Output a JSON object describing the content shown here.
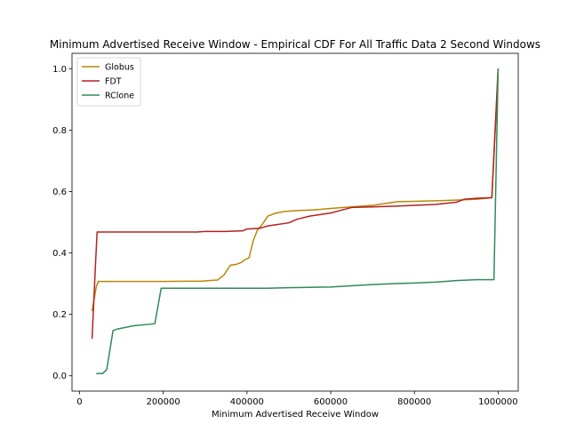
{
  "chart_data": {
    "type": "line",
    "title": "Minimum Advertised Receive Window - Empirical CDF For All Traffic Data 2 Second Windows",
    "xlabel": "Minimum Advertised Receive Window",
    "ylabel": "",
    "xlim": [
      -18000,
      1048000
    ],
    "ylim": [
      -0.05,
      1.05
    ],
    "xticks": [
      0,
      200000,
      400000,
      600000,
      800000,
      1000000
    ],
    "xtick_labels": [
      "0",
      "200000",
      "400000",
      "600000",
      "800000",
      "1000000"
    ],
    "yticks": [
      0.0,
      0.2,
      0.4,
      0.6,
      0.8,
      1.0
    ],
    "ytick_labels": [
      "0.0",
      "0.2",
      "0.4",
      "0.6",
      "0.8",
      "1.0"
    ],
    "grid": false,
    "legend_position": "top-left",
    "series": [
      {
        "name": "Globus",
        "color": "#b8860b",
        "x": [
          30000,
          40000,
          45000,
          60000,
          100000,
          200000,
          250000,
          290000,
          310000,
          330000,
          345000,
          360000,
          375000,
          385000,
          395000,
          405000,
          415000,
          425000,
          435000,
          450000,
          470000,
          490000,
          520000,
          560000,
          600000,
          650000,
          700000,
          760000,
          800000,
          850000,
          900000,
          950000,
          985000,
          1000000
        ],
        "y": [
          0.21,
          0.29,
          0.307,
          0.307,
          0.307,
          0.307,
          0.308,
          0.308,
          0.31,
          0.312,
          0.328,
          0.36,
          0.363,
          0.368,
          0.378,
          0.384,
          0.44,
          0.475,
          0.49,
          0.52,
          0.53,
          0.535,
          0.538,
          0.54,
          0.545,
          0.55,
          0.555,
          0.567,
          0.568,
          0.57,
          0.572,
          0.575,
          0.58,
          1.0
        ]
      },
      {
        "name": "FDT",
        "color": "#b22222",
        "x": [
          30000,
          38000,
          42000,
          100000,
          200000,
          280000,
          300000,
          350000,
          390000,
          400000,
          430000,
          450000,
          470000,
          500000,
          520000,
          550000,
          600000,
          650000,
          700000,
          750000,
          800000,
          850000,
          900000,
          920000,
          950000,
          985000,
          1000000
        ],
        "y": [
          0.12,
          0.36,
          0.468,
          0.468,
          0.468,
          0.468,
          0.47,
          0.47,
          0.472,
          0.478,
          0.48,
          0.488,
          0.492,
          0.498,
          0.51,
          0.52,
          0.53,
          0.548,
          0.55,
          0.552,
          0.555,
          0.558,
          0.565,
          0.575,
          0.578,
          0.58,
          1.0
        ]
      },
      {
        "name": "RClone",
        "color": "#2e8b57",
        "x": [
          40000,
          55000,
          65000,
          80000,
          90000,
          130000,
          170000,
          180000,
          195000,
          250000,
          300000,
          350000,
          400000,
          450000,
          500000,
          550000,
          600000,
          650000,
          700000,
          750000,
          800000,
          850000,
          900000,
          950000,
          990000,
          1000000
        ],
        "y": [
          0.007,
          0.007,
          0.02,
          0.147,
          0.152,
          0.163,
          0.168,
          0.17,
          0.285,
          0.285,
          0.285,
          0.285,
          0.285,
          0.285,
          0.287,
          0.288,
          0.289,
          0.293,
          0.297,
          0.3,
          0.302,
          0.305,
          0.31,
          0.313,
          0.313,
          1.0
        ]
      }
    ]
  }
}
